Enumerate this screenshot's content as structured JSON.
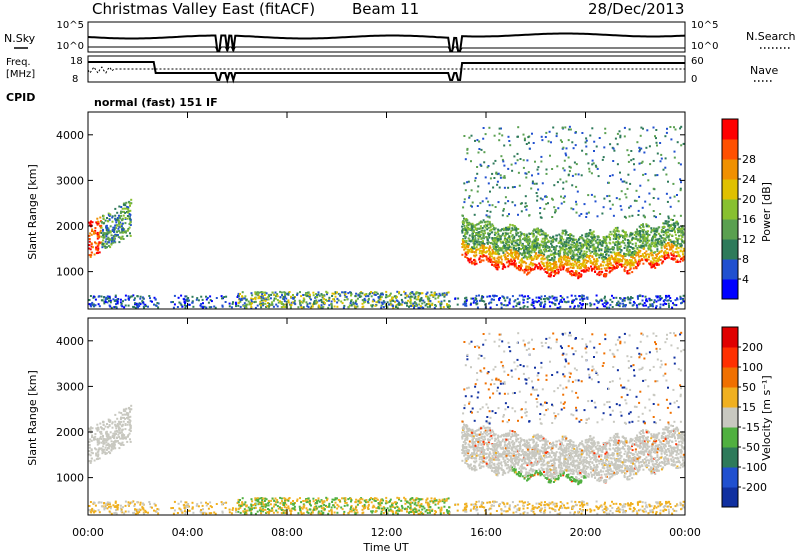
{
  "header": {
    "station": "Christmas Valley East (fitACF)",
    "beam": "Beam 11",
    "date": "28/Dec/2013"
  },
  "strip": {
    "nsky_label": "N.Sky",
    "nsky_ticks": [
      "10^5",
      "10^0"
    ],
    "nsearch_label": "N.Search",
    "nsearch_ticks": [
      "10^5",
      "10^0"
    ],
    "freq_label": "Freq.",
    "freq_unit": "[MHz]",
    "freq_ticks": [
      "18",
      "8"
    ],
    "nave_label": "Nave",
    "nave_ticks": [
      "60",
      "0"
    ],
    "cpid_label": "CPID",
    "cpid_text": "normal (fast) 151 IF"
  },
  "chart_data": [
    {
      "type": "heatmap",
      "name": "power",
      "ylabel": "Slant Range [km]",
      "yticks": [
        "1000",
        "2000",
        "3000",
        "4000"
      ],
      "ylim": [
        180,
        4500
      ],
      "xlabel": "Time UT",
      "xlim": [
        "00:00",
        "24:00"
      ],
      "xticks": [
        "00:00",
        "04:00",
        "08:00",
        "12:00",
        "16:00",
        "20:00",
        "00:00"
      ],
      "colorbar": {
        "label": "Power [dB]",
        "ticks": [
          "4",
          "8",
          "12",
          "16",
          "20",
          "24",
          "28"
        ],
        "range": [
          0,
          30
        ],
        "colors": [
          "#0000ff",
          "#2050d0",
          "#2e7a5a",
          "#5aa050",
          "#88c030",
          "#e0c000",
          "#f09000",
          "#ff5000",
          "#ff0000"
        ]
      }
    },
    {
      "type": "heatmap",
      "name": "velocity",
      "ylabel": "Slant Range [km]",
      "yticks": [
        "1000",
        "2000",
        "3000",
        "4000"
      ],
      "ylim": [
        180,
        4500
      ],
      "xlabel": "Time UT",
      "xlim": [
        "00:00",
        "24:00"
      ],
      "xticks": [
        "00:00",
        "04:00",
        "08:00",
        "12:00",
        "16:00",
        "20:00",
        "00:00"
      ],
      "colorbar": {
        "label": "Velocity [m s⁻¹]",
        "ticks": [
          "200",
          "100",
          "50",
          "15",
          "-15",
          "-50",
          "-100",
          "-200"
        ],
        "colors": [
          "#1030a0",
          "#2050d0",
          "#2e7a5a",
          "#50b040",
          "#c8c8c0",
          "#f0b020",
          "#f07000",
          "#ff3000",
          "#e00000"
        ]
      }
    }
  ]
}
